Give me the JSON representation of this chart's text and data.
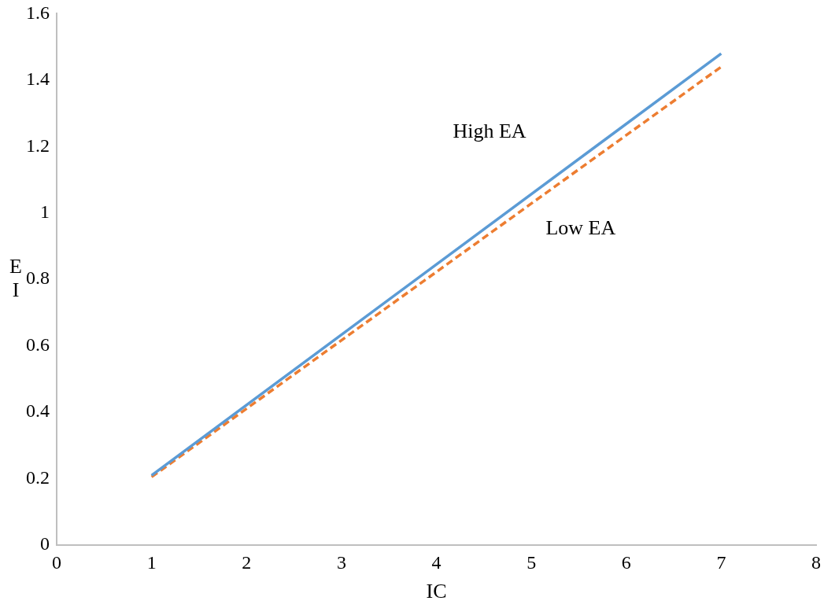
{
  "chart_data": {
    "type": "line",
    "xlabel": "IC",
    "ylabel": "EI",
    "x": [
      1,
      7
    ],
    "series": [
      {
        "name": "High EA",
        "color": "#5b9bd5",
        "values": [
          0.21,
          1.48
        ],
        "line_style": "solid"
      },
      {
        "name": "Low EA",
        "color": "#ed7d31",
        "values": [
          0.205,
          1.44
        ],
        "line_style": "dashed"
      }
    ],
    "xlim": [
      0,
      8
    ],
    "xticks": [
      0,
      1,
      2,
      3,
      4,
      5,
      6,
      7,
      8
    ],
    "ylim": [
      0,
      1.6
    ],
    "yticks": [
      0,
      0.2,
      0.4,
      0.6,
      0.8,
      1,
      1.2,
      1.4,
      1.6
    ],
    "grid": false,
    "legend": false,
    "marker": "none"
  }
}
